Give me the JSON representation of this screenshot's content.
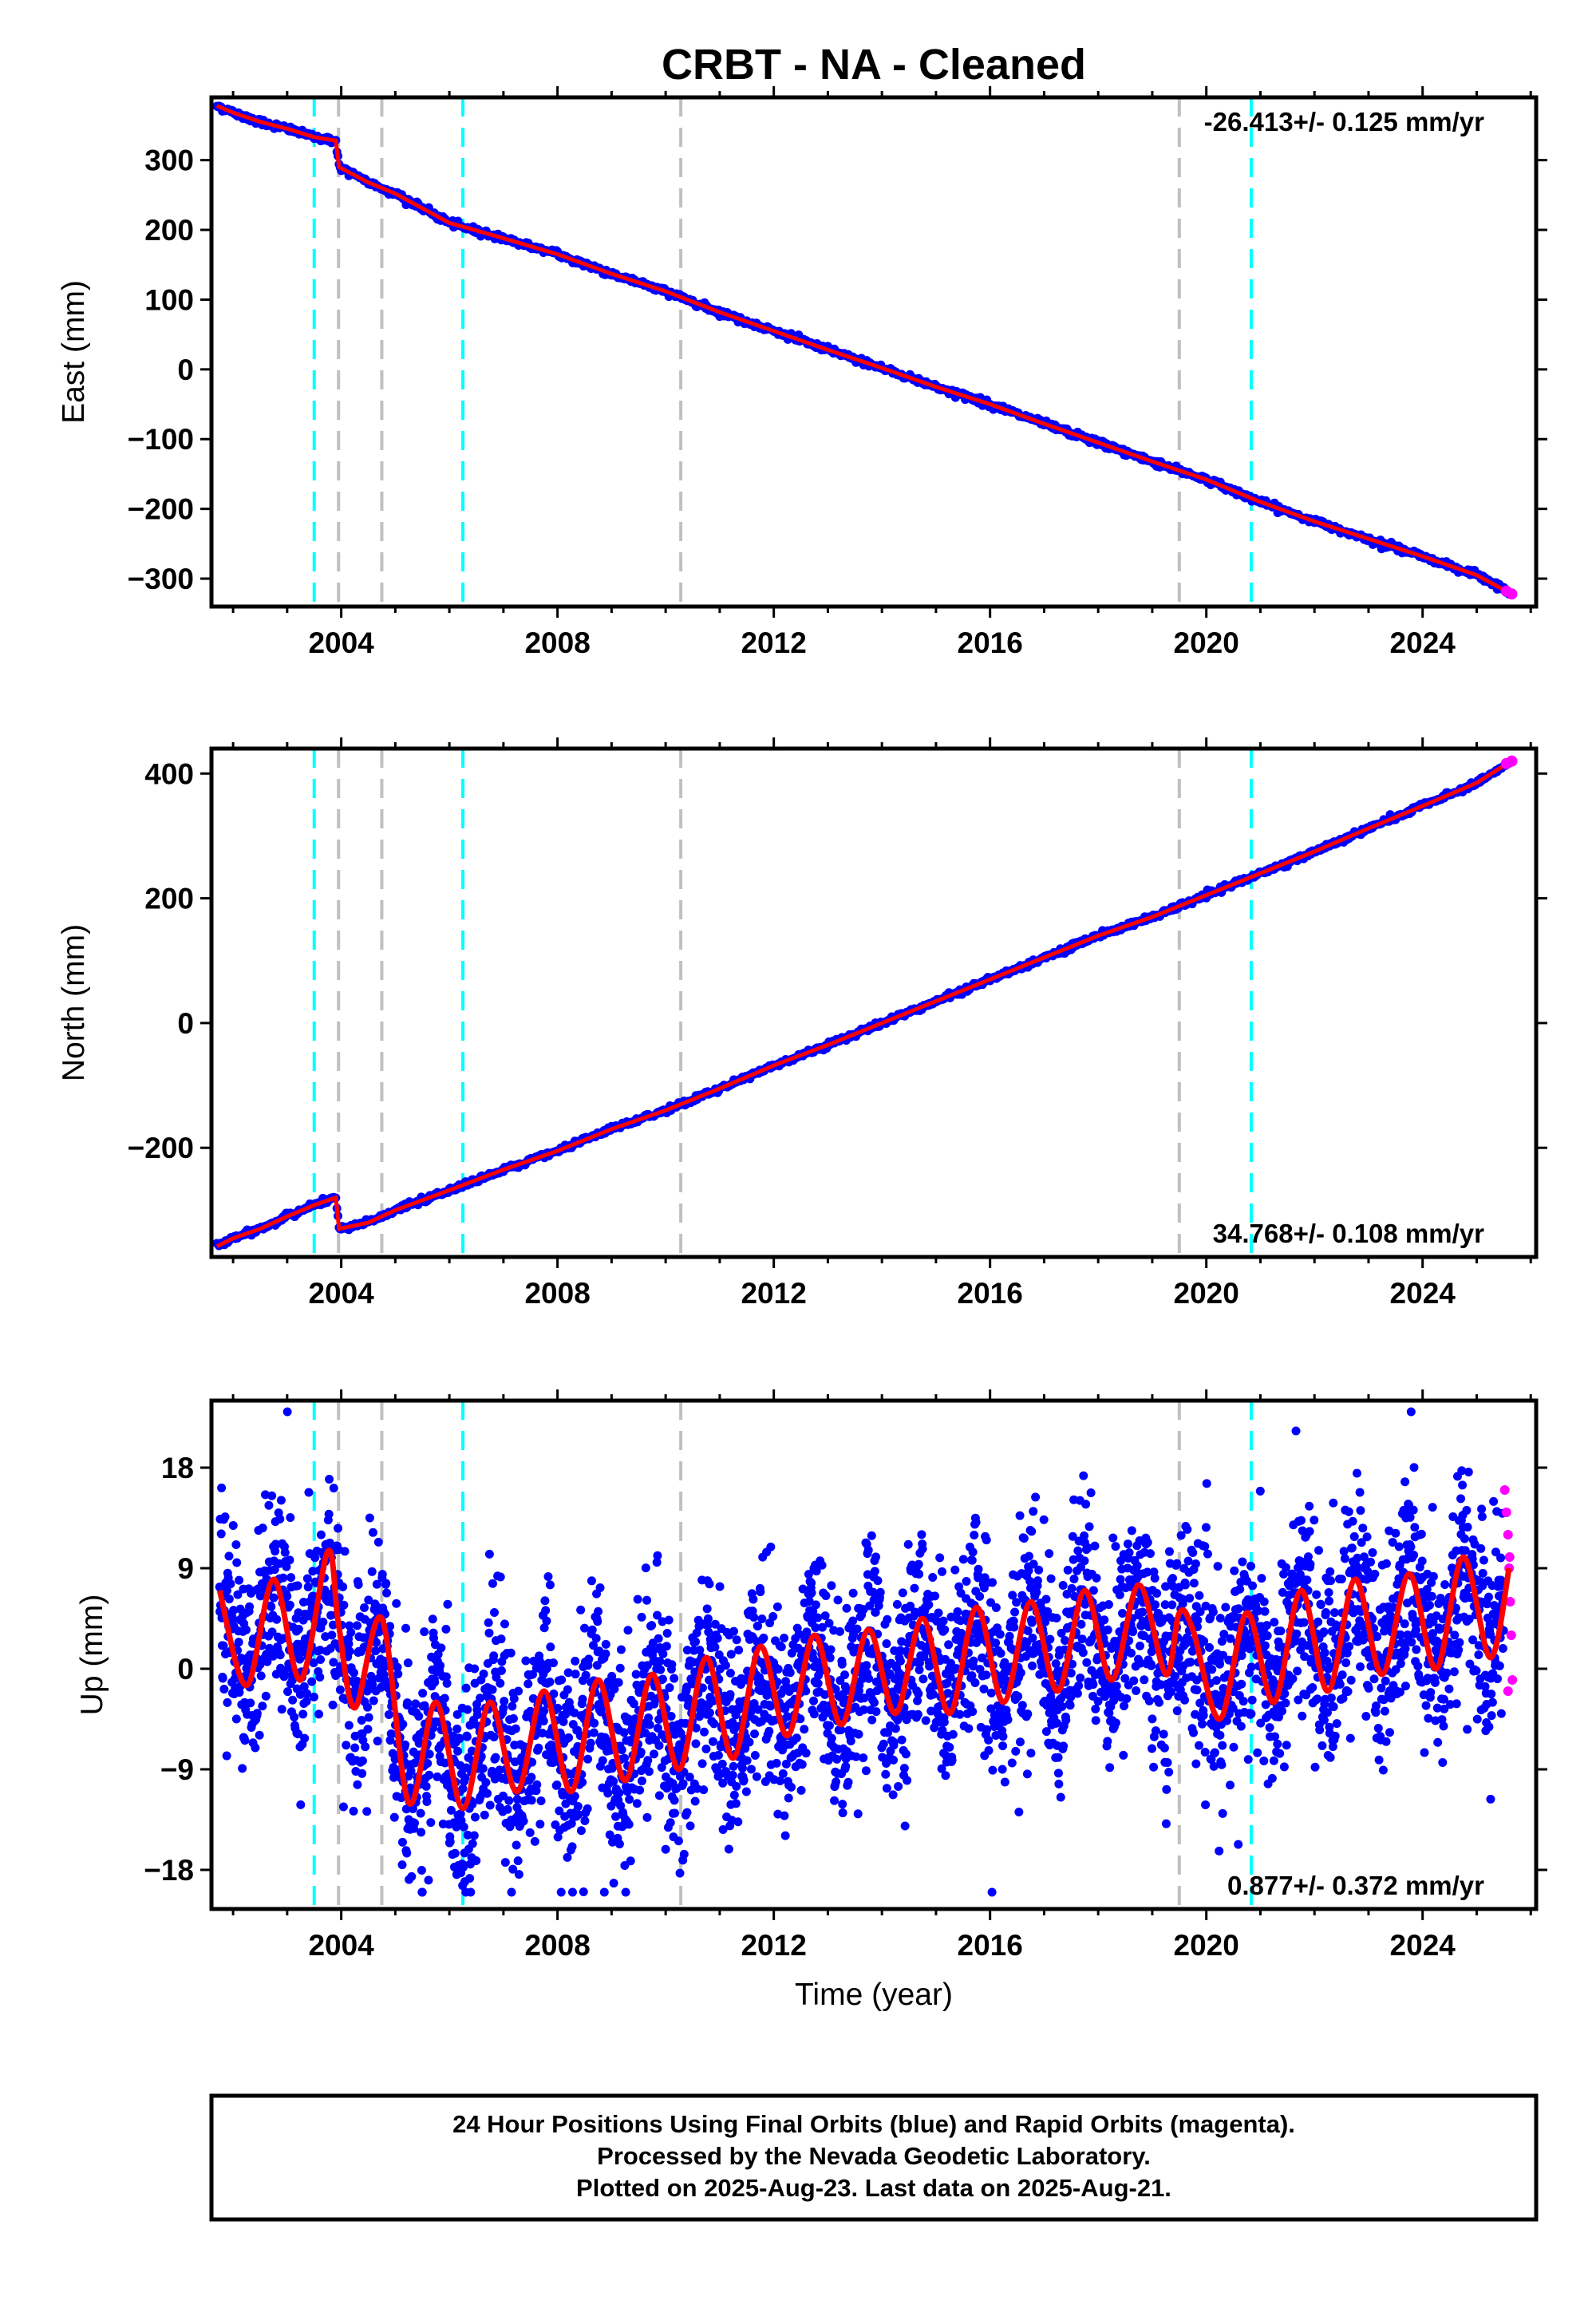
{
  "title": "CRBT  - NA - Cleaned",
  "colors": {
    "final_orbits": "#0000ff",
    "rapid_orbits": "#ff00ff",
    "model": "#ff0000",
    "antenna_change": "#00ffff",
    "other_event": "#c0c0c0"
  },
  "events": {
    "cyan_lines": [
      2003.5,
      2006.25,
      2020.83
    ],
    "gray_lines": [
      2003.95,
      2004.75,
      2010.28,
      2019.5
    ]
  },
  "chart_data": [
    {
      "type": "scatter",
      "panel": "east",
      "ylabel": "East (mm)",
      "xlim": [
        2001.6,
        2026.1
      ],
      "ylim": [
        -340,
        390
      ],
      "yticks": [
        -300,
        -200,
        -100,
        0,
        100,
        200,
        300
      ],
      "xticks": [
        2004,
        2008,
        2012,
        2016,
        2020,
        2024
      ],
      "rate_label": "-26.413+/- 0.125 mm/yr",
      "rate_position": "top-right",
      "series": [
        {
          "role": "final_orbits",
          "x": [
            2001.7,
            2002.0,
            2002.5,
            2003.0,
            2003.5,
            2003.9,
            2003.96,
            2004.5,
            2005.0,
            2006.0,
            2007.0,
            2008.0,
            2009.0,
            2010.0,
            2011.0,
            2012.0,
            2013.0,
            2014.0,
            2015.0,
            2016.0,
            2017.0,
            2018.0,
            2019.0,
            2020.0,
            2021.0,
            2022.0,
            2023.0,
            2024.0,
            2025.0,
            2025.6
          ],
          "values": [
            378,
            368,
            355,
            345,
            333,
            328,
            290,
            268,
            252,
            210,
            188,
            165,
            137,
            112,
            82,
            55,
            28,
            2,
            -25,
            -50,
            -78,
            -105,
            -132,
            -158,
            -190,
            -218,
            -243,
            -268,
            -295,
            -320
          ]
        },
        {
          "role": "rapid_orbits",
          "x": [
            2025.55,
            2025.65
          ],
          "values": [
            -318,
            -322
          ]
        }
      ]
    },
    {
      "type": "scatter",
      "panel": "north",
      "ylabel": "North (mm)",
      "xlim": [
        2001.6,
        2026.1
      ],
      "ylim": [
        -375,
        440
      ],
      "yticks": [
        -200,
        0,
        200,
        400
      ],
      "xticks": [
        2004,
        2008,
        2012,
        2016,
        2020,
        2024
      ],
      "rate_label": "34.768+/- 0.108 mm/yr",
      "rate_position": "bottom-right",
      "series": [
        {
          "role": "final_orbits",
          "x": [
            2001.7,
            2002.0,
            2002.5,
            2003.0,
            2003.5,
            2003.9,
            2003.96,
            2004.5,
            2005.0,
            2006.0,
            2007.0,
            2008.0,
            2009.0,
            2010.0,
            2011.0,
            2012.0,
            2013.0,
            2014.0,
            2015.0,
            2016.0,
            2017.0,
            2018.0,
            2019.0,
            2020.0,
            2021.0,
            2022.0,
            2023.0,
            2024.0,
            2025.0,
            2025.6
          ],
          "values": [
            -358,
            -345,
            -330,
            -310,
            -292,
            -280,
            -330,
            -320,
            -300,
            -268,
            -235,
            -205,
            -170,
            -140,
            -105,
            -68,
            -35,
            0,
            35,
            70,
            105,
            140,
            170,
            205,
            240,
            275,
            312,
            348,
            385,
            418
          ]
        },
        {
          "role": "rapid_orbits",
          "x": [
            2025.55,
            2025.65
          ],
          "values": [
            416,
            420
          ]
        }
      ]
    },
    {
      "type": "scatter",
      "panel": "up",
      "ylabel": "Up (mm)",
      "xlabel": "Time (year)",
      "xlim": [
        2001.6,
        2026.1
      ],
      "ylim": [
        -21.5,
        24
      ],
      "yticks": [
        -18,
        -9,
        0,
        9,
        18
      ],
      "xticks": [
        2004,
        2008,
        2012,
        2016,
        2020,
        2024
      ],
      "rate_label": "0.877+/- 0.372 mm/yr",
      "rate_position": "bottom-right",
      "series": [
        {
          "role": "final_orbits",
          "x_range": [
            2001.75,
            2025.5
          ],
          "scatter_mm": 4.5,
          "outlier_max": 23,
          "outlier_min": -20
        },
        {
          "role": "rapid_orbits",
          "x": [
            2025.52,
            2025.55,
            2025.58,
            2025.6,
            2025.62,
            2025.64,
            2025.66,
            2025.58,
            2025.61
          ],
          "values": [
            16,
            14,
            12,
            9,
            6,
            3,
            -1,
            -2,
            10
          ]
        },
        {
          "role": "model",
          "x": [
            2001.75,
            2002.25,
            2002.75,
            2003.25,
            2003.75,
            2003.95,
            2004.25,
            2004.75,
            2005.25,
            2005.75,
            2006.25,
            2006.75,
            2007.25,
            2007.75,
            2008.25,
            2008.75,
            2009.25,
            2009.75,
            2010.25,
            2010.75,
            2011.25,
            2011.75,
            2012.25,
            2012.75,
            2013.25,
            2013.75,
            2014.25,
            2014.75,
            2015.25,
            2015.75,
            2016.25,
            2016.75,
            2017.25,
            2017.75,
            2018.25,
            2018.75,
            2019.25,
            2019.5,
            2019.75,
            2020.25,
            2020.75,
            2021.25,
            2021.75,
            2022.25,
            2022.75,
            2023.25,
            2023.75,
            2024.25,
            2024.75,
            2025.25,
            2025.6
          ],
          "values": [
            7,
            -1.5,
            8,
            -1,
            10.5,
            4,
            -3.5,
            4.5,
            -12,
            -3,
            -12.5,
            -3,
            -11,
            -2,
            -11,
            -1,
            -10,
            -0.5,
            -9,
            1,
            -8,
            2,
            -6,
            3,
            -5,
            3.5,
            -4,
            4.5,
            -4,
            5.5,
            -3,
            6,
            -2,
            7,
            -1,
            7.5,
            -0.5,
            5,
            3.5,
            -4.5,
            5,
            -3,
            7,
            -2,
            8,
            -0.5,
            8.5,
            0,
            10,
            1,
            9
          ]
        }
      ]
    }
  ],
  "footer": {
    "line1": "24 Hour Positions Using Final Orbits (blue) and Rapid Orbits (magenta).",
    "line2": "Processed by the Nevada Geodetic Laboratory.",
    "line3": "Plotted on 2025-Aug-23. Last data on 2025-Aug-21."
  }
}
